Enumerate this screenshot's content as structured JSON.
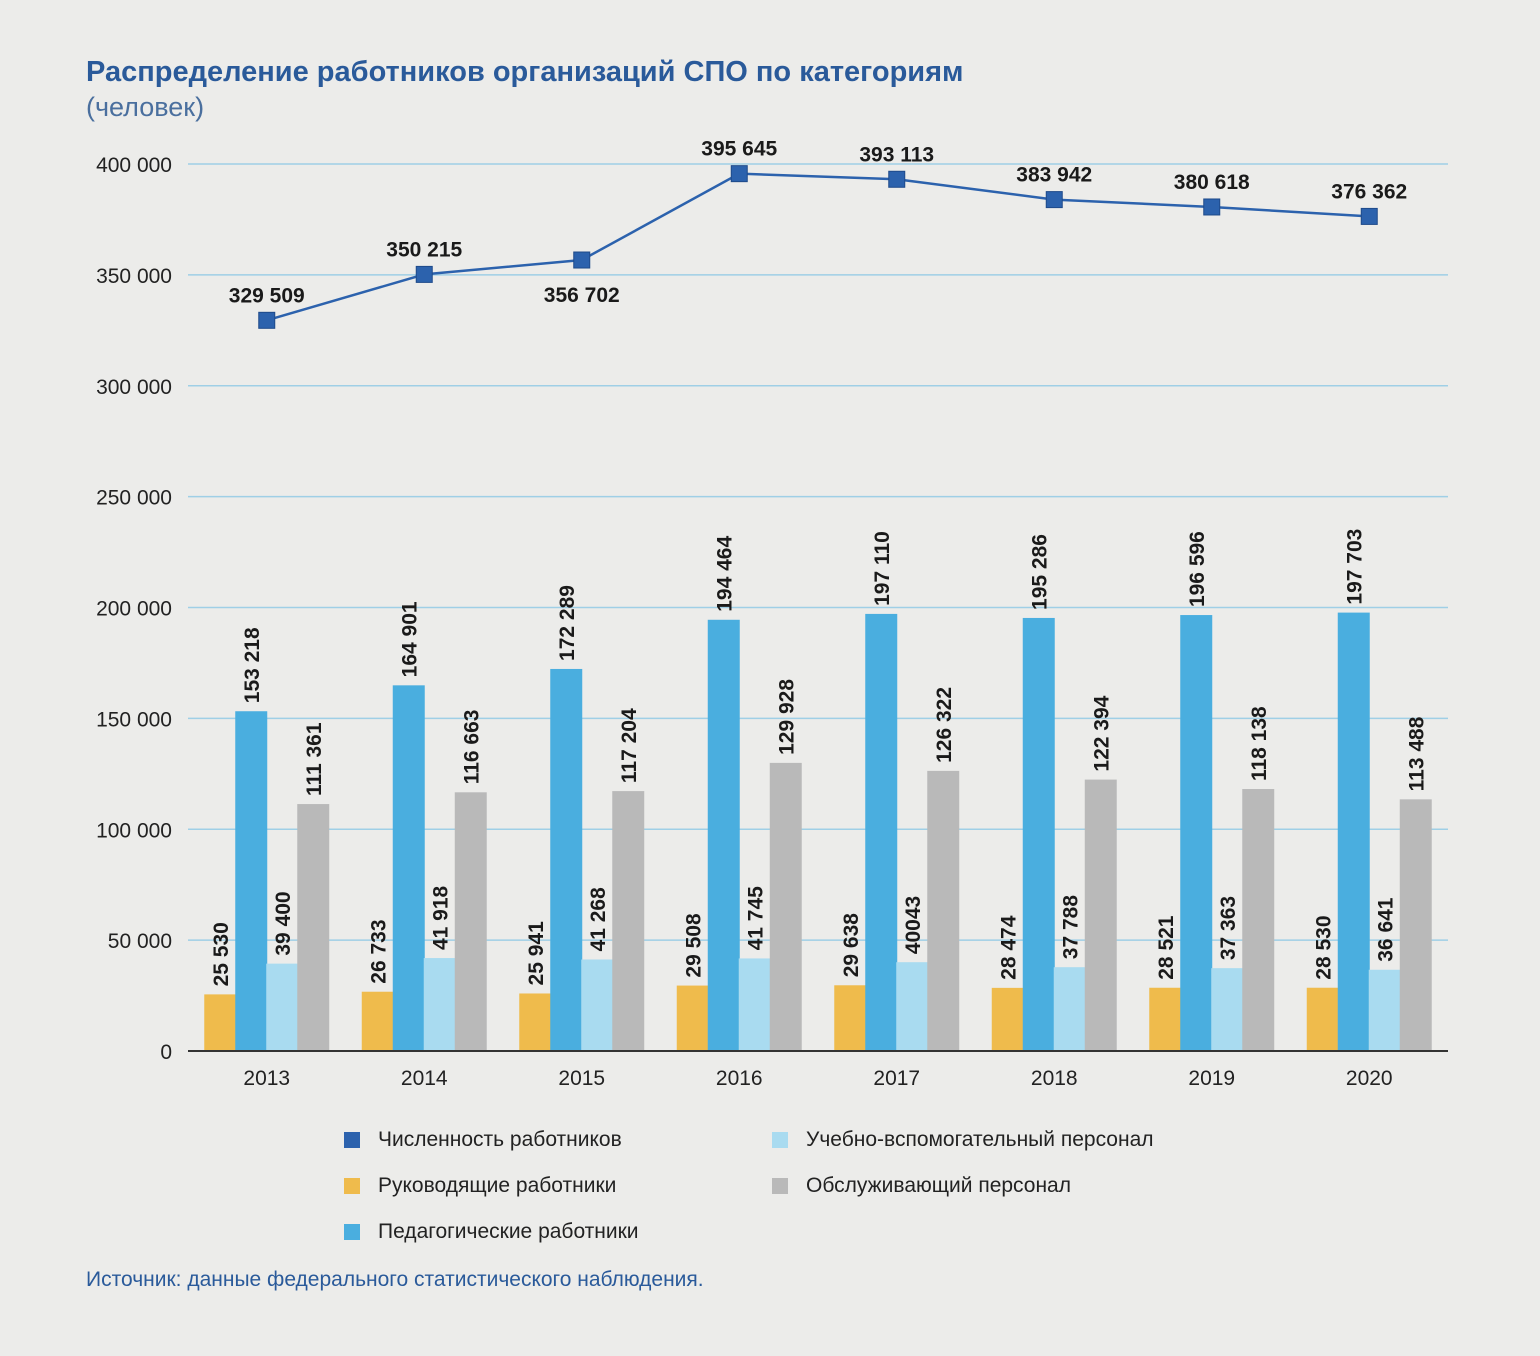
{
  "title": "Распределение работников организаций СПО по категориям",
  "subtitle": "(человек)",
  "source": "Источник: данные федерального статистического наблюдения.",
  "colors": {
    "total": "#2c62ad",
    "managers": "#efbb4c",
    "teachers": "#4aaedf",
    "support": "#a9dbf0",
    "service": "#b9b9b9",
    "grid": "#9fcfe6"
  },
  "chart_data": {
    "type": "bar",
    "title": "Распределение работников организаций СПО по категориям",
    "ylabel": "",
    "xlabel": "",
    "ylim": [
      0,
      400000
    ],
    "yticks": [
      0,
      50000,
      100000,
      150000,
      200000,
      250000,
      300000,
      350000,
      400000
    ],
    "ytick_labels": [
      "0",
      "50 000",
      "100 000",
      "150 000",
      "200 000",
      "250 000",
      "300 000",
      "350 000",
      "400 000"
    ],
    "grid": true,
    "legend_position": "bottom",
    "categories": [
      "2013",
      "2014",
      "2015",
      "2016",
      "2017",
      "2018",
      "2019",
      "2020"
    ],
    "series": [
      {
        "name": "Численность работников",
        "kind": "line",
        "color_key": "total",
        "values": [
          329509,
          350215,
          356702,
          395645,
          393113,
          383942,
          380618,
          376362
        ],
        "labels": [
          "329 509",
          "350 215",
          "356 702",
          "395 645",
          "393 113",
          "383 942",
          "380 618",
          "376 362"
        ]
      },
      {
        "name": "Руководящие работники",
        "kind": "bar",
        "color_key": "managers",
        "values": [
          25530,
          26733,
          25941,
          29508,
          29638,
          28474,
          28521,
          28530
        ],
        "labels": [
          "25 530",
          "26 733",
          "25 941",
          "29 508",
          "29 638",
          "28 474",
          "28 521",
          "28 530"
        ]
      },
      {
        "name": "Педагогические работники",
        "kind": "bar",
        "color_key": "teachers",
        "values": [
          153218,
          164901,
          172289,
          194464,
          197110,
          195286,
          196596,
          197703
        ],
        "labels": [
          "153 218",
          "164 901",
          "172 289",
          "194 464",
          "197 110",
          "195 286",
          "196 596",
          "197 703"
        ]
      },
      {
        "name": "Учебно-вспомогательный персонал",
        "kind": "bar",
        "color_key": "support",
        "values": [
          39400,
          41918,
          41268,
          41745,
          40043,
          37788,
          37363,
          36641
        ],
        "labels": [
          "39 400",
          "41 918",
          "41 268",
          "41 745",
          "40043",
          "37 788",
          "37 363",
          "36 641"
        ]
      },
      {
        "name": "Обслуживающий персонал",
        "kind": "bar",
        "color_key": "service",
        "values": [
          111361,
          116663,
          117204,
          129928,
          126322,
          122394,
          118138,
          113488
        ],
        "labels": [
          "111 361",
          "116 663",
          "117 204",
          "129 928",
          "126 322",
          "122 394",
          "118 138",
          "113 488"
        ]
      }
    ]
  },
  "legend": [
    {
      "label": "Численность работников",
      "color_key": "total"
    },
    {
      "label": "Учебно-вспомогательный персонал",
      "color_key": "support"
    },
    {
      "label": "Руководящие работники",
      "color_key": "managers"
    },
    {
      "label": "Обслуживающий персонал",
      "color_key": "service"
    },
    {
      "label": "Педагогические работники",
      "color_key": "teachers"
    }
  ]
}
